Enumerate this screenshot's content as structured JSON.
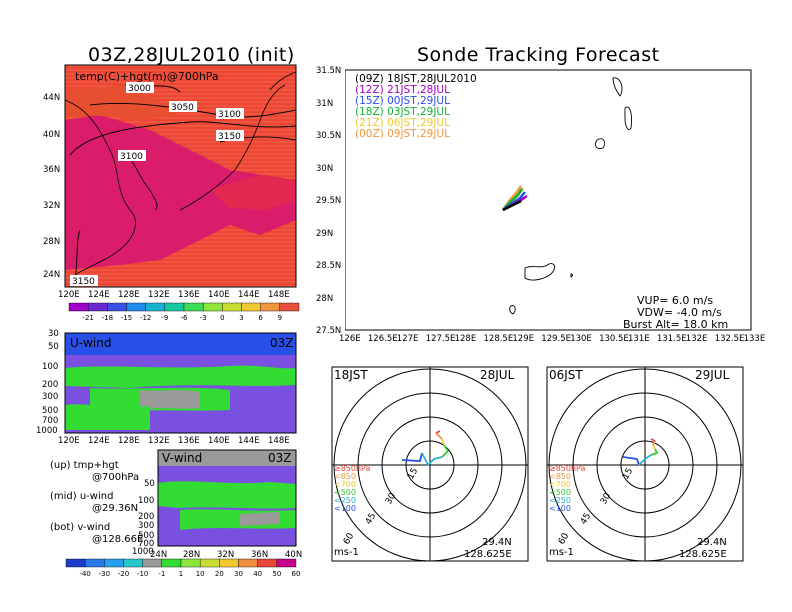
{
  "left_title": "03Z,28JUL2010 (init)",
  "main_title": "Sonde Tracking Forecast",
  "top_map": {
    "field_label": "temp(C)+hgt(m)@700hPa",
    "contour_labels": [
      "3000",
      "3050",
      "3100",
      "3150",
      "3100",
      "3150"
    ],
    "lat_ticks": [
      "44N",
      "40N",
      "36N",
      "32N",
      "28N",
      "24N"
    ],
    "lon_ticks": [
      "120E",
      "124E",
      "128E",
      "132E",
      "136E",
      "140E",
      "144E",
      "148E"
    ],
    "colorbar_labels": [
      "-21",
      "-18",
      "-15",
      "-12",
      "-9",
      "-6",
      "-3",
      "0",
      "3",
      "6",
      "9"
    ],
    "colorbar_colors": [
      "#a000c8",
      "#6e28d2",
      "#3c50e6",
      "#1e8cf0",
      "#14b4d2",
      "#14c8a0",
      "#3cdc5a",
      "#8ce63c",
      "#c8dc32",
      "#f0c832",
      "#f0963c",
      "#e6503c"
    ]
  },
  "u_panel": {
    "label": "U-wind",
    "time": "03Z",
    "levels": [
      "30",
      "50",
      "100",
      "200",
      "300",
      "500",
      "700",
      "1000"
    ],
    "lon_ticks": [
      "120E",
      "124E",
      "128E",
      "132E",
      "136E",
      "140E",
      "144E",
      "148E"
    ]
  },
  "v_panel": {
    "label": "V-wind",
    "time": "03Z",
    "levels": [
      "50",
      "100",
      "200",
      "300",
      "500",
      "700",
      "1000"
    ],
    "lat_ticks": [
      "24N",
      "28N",
      "32N",
      "36N",
      "40N"
    ]
  },
  "legend_notes": {
    "up1": "(up) tmp+hgt",
    "up2": "@700hPa",
    "mid1": "(mid) u-wind",
    "mid2": "@29.36N",
    "bot1": "(bot) v-wind",
    "bot2": "@128.66E"
  },
  "wind_colorbar": {
    "labels": [
      "-40",
      "-30",
      "-20",
      "-10",
      "-1",
      "1",
      "10",
      "20",
      "30",
      "40",
      "50",
      "60"
    ],
    "colors": [
      "#1e3cc8",
      "#2878e6",
      "#28a0f0",
      "#28c8c8",
      "#9a9a9a",
      "#32dc32",
      "#8ce63c",
      "#c8dc32",
      "#f0c832",
      "#f08c3c",
      "#e6463c",
      "#c8008c"
    ]
  },
  "tracking_map": {
    "legend": [
      {
        "text": "(09Z) 18JST,28JUL2010",
        "color": "#000000"
      },
      {
        "text": "(12Z) 21JST,28JUL",
        "color": "#a000c8"
      },
      {
        "text": "(15Z) 00JST,29JUL",
        "color": "#2850e6"
      },
      {
        "text": "(18Z) 03JST,29JUL",
        "color": "#14b432"
      },
      {
        "text": "(21Z) 06JST,29JUL",
        "color": "#f0c832"
      },
      {
        "text": "(00Z) 09JST,29JUL",
        "color": "#f0963c"
      }
    ],
    "lat_ticks": [
      "31.5N",
      "31N",
      "30.5N",
      "30N",
      "29.5N",
      "29N",
      "28.5N",
      "28N",
      "27.5N"
    ],
    "lon_ticks": [
      "126E",
      "126.5E",
      "127E",
      "127.5E",
      "128E",
      "128.5E",
      "129E",
      "129.5E",
      "130E",
      "130.5E",
      "131E",
      "131.5E",
      "132E",
      "132.5E",
      "133E"
    ],
    "vup": "VUP= 6.0 m/s",
    "vdw": "VDW= -4.0 m/s",
    "burst": "Burst Alt= 18.0 km"
  },
  "hodo_left": {
    "time": "18JST",
    "date": "28JUL",
    "ring_labels": [
      "15",
      "30",
      "45",
      "60"
    ],
    "level_legend": [
      {
        "text": "≥850hPa",
        "color": "#e6463c"
      },
      {
        "text": "<850",
        "color": "#f0963c"
      },
      {
        "text": "<700",
        "color": "#f0c832"
      },
      {
        "text": "<500",
        "color": "#32c832"
      },
      {
        "text": "<250",
        "color": "#28b4d2"
      },
      {
        "text": "<100",
        "color": "#2850e6"
      }
    ],
    "lat": "29.4N",
    "lon": "128.625E",
    "unit": "ms-1"
  },
  "hodo_right": {
    "time": "06JST",
    "date": "29JUL",
    "ring_labels": [
      "15",
      "30",
      "45",
      "60"
    ],
    "level_legend": [
      {
        "text": "≥850hPa",
        "color": "#e6463c"
      },
      {
        "text": "<850",
        "color": "#f0963c"
      },
      {
        "text": "<700",
        "color": "#f0c832"
      },
      {
        "text": "<500",
        "color": "#32c832"
      },
      {
        "text": "<250",
        "color": "#28b4d2"
      },
      {
        "text": "<100",
        "color": "#2850e6"
      }
    ],
    "lat": "29.4N",
    "lon": "128.625E",
    "unit": "ms-1"
  }
}
